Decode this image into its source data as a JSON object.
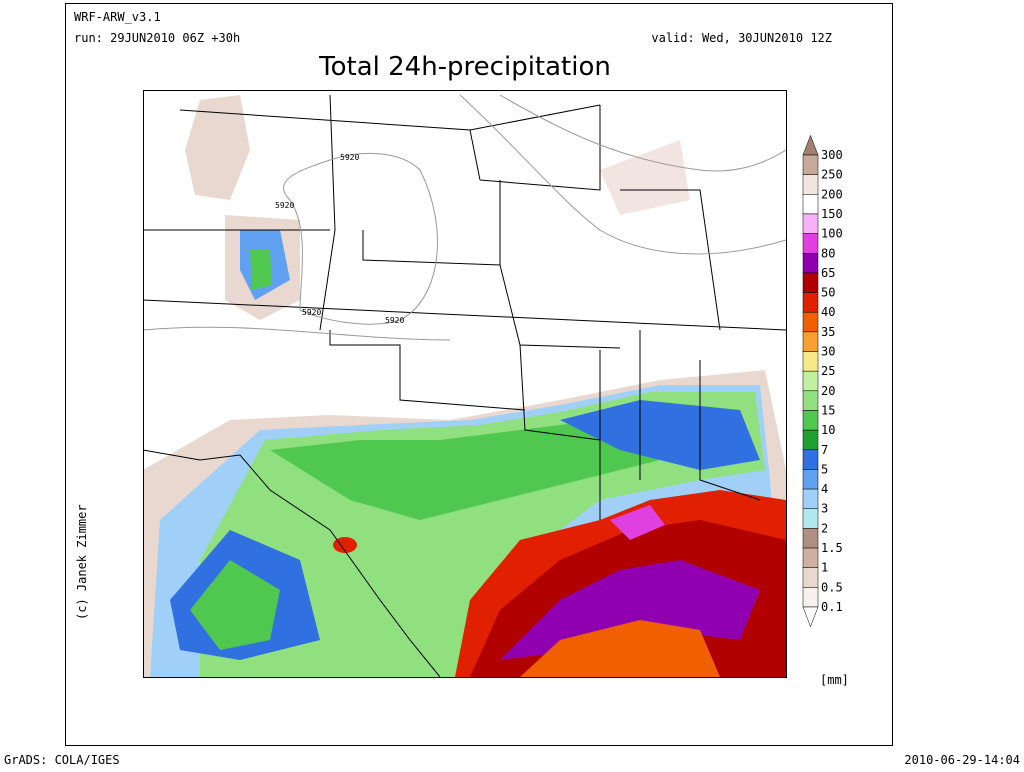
{
  "header": {
    "model": "WRF-ARW_v3.1",
    "run": "run: 29JUN2010 06Z +30h",
    "valid": "valid: Wed, 30JUN2010 12Z",
    "title": "Total 24h-precipitation"
  },
  "map": {
    "contour_labels": [
      "5920",
      "5920",
      "5920",
      "5920"
    ]
  },
  "legend": {
    "labels": [
      "300",
      "250",
      "200",
      "150",
      "100",
      "80",
      "65",
      "50",
      "40",
      "35",
      "30",
      "25",
      "20",
      "15",
      "10",
      "7",
      "5",
      "4",
      "3",
      "2",
      "1.5",
      "1",
      "0.5",
      "0.1"
    ],
    "colors": [
      "#a08070",
      "#c8a898",
      "#f2e4e0",
      "#ffffff",
      "#f8b0f8",
      "#e040e0",
      "#9000b0",
      "#b00000",
      "#e02000",
      "#f06000",
      "#f8a030",
      "#f8e888",
      "#c0f0a0",
      "#90e080",
      "#50c850",
      "#20a030",
      "#3070e0",
      "#60a0f0",
      "#a0d0f8",
      "#b0e8f0",
      "#b09080",
      "#d0b0a0",
      "#e8d8d0",
      "#f8f0ec",
      "#ffffff"
    ],
    "unit": "[mm]"
  },
  "credit": "(c) Janek Zimmer",
  "footer": {
    "left": "GrADS: COLA/IGES",
    "right": "2010-06-29-14:04"
  }
}
